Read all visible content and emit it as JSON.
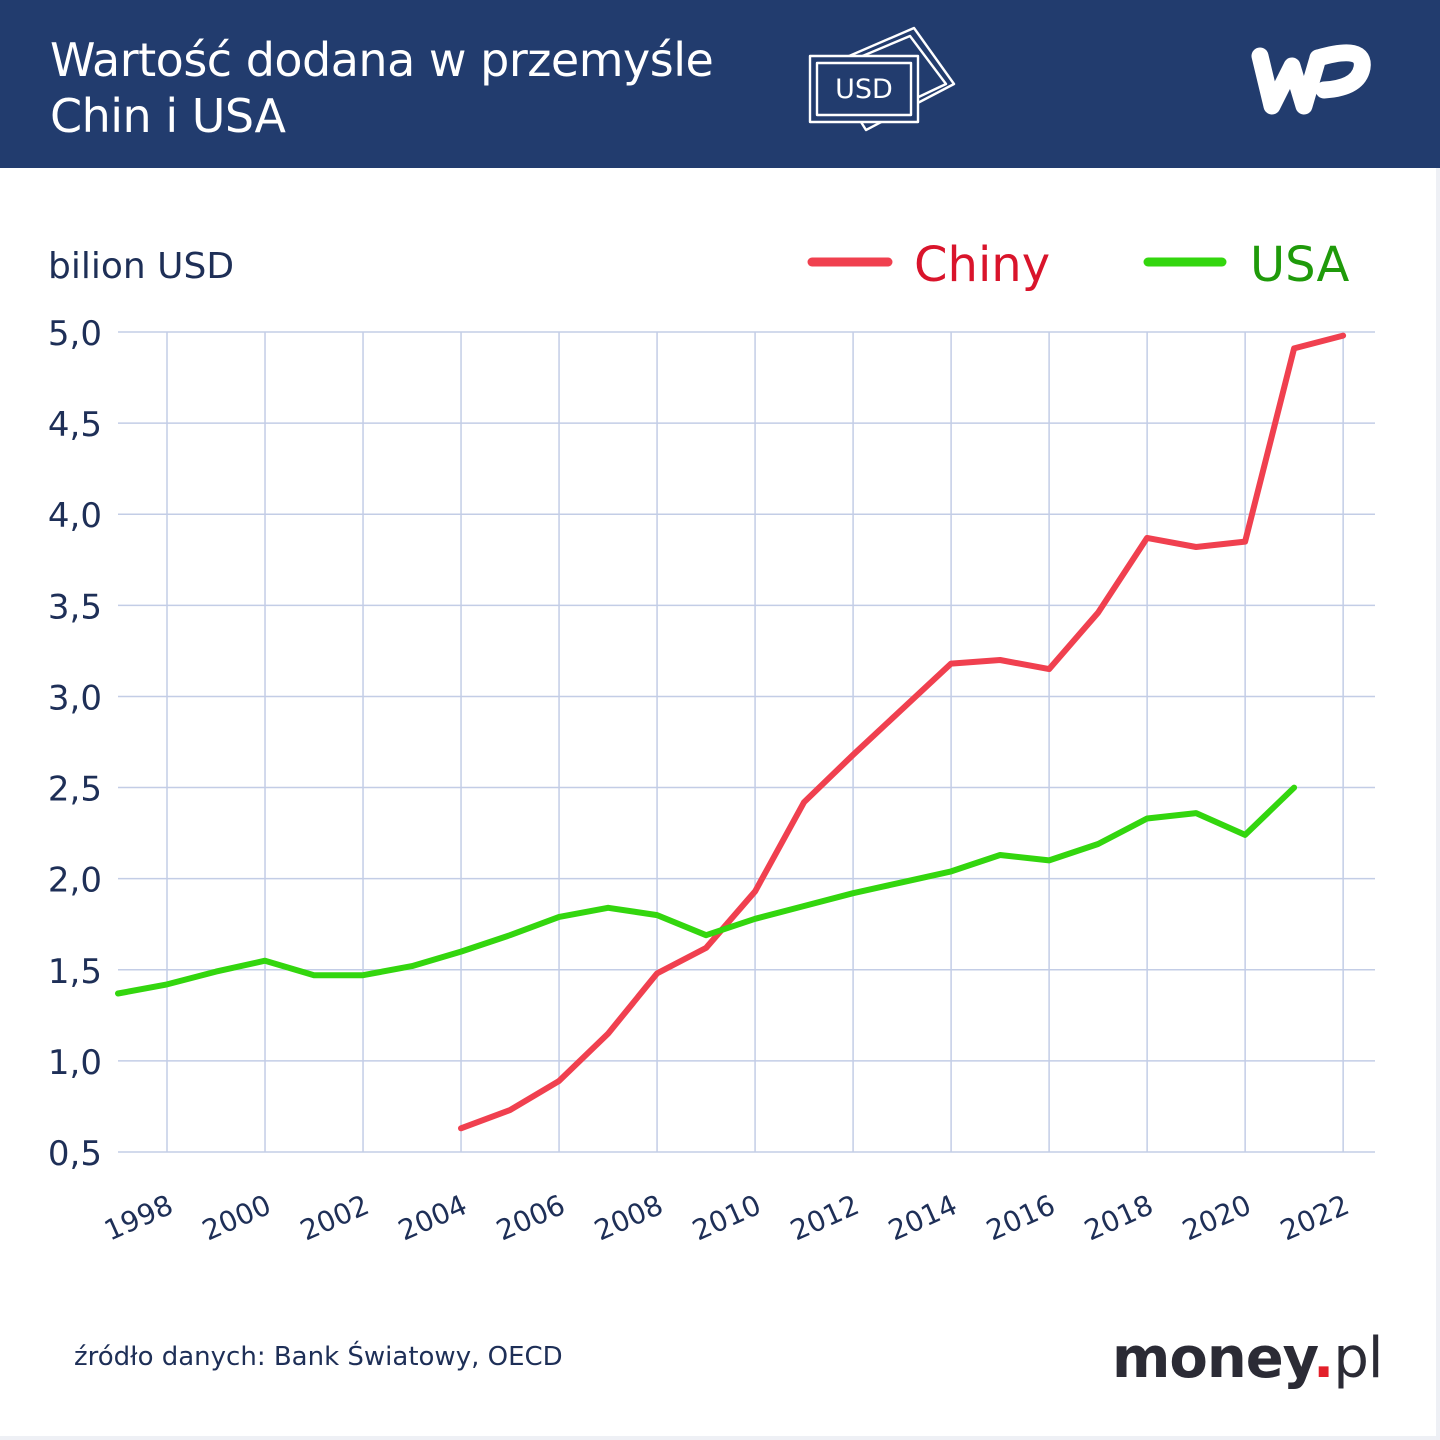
{
  "header": {
    "title_line1": "Wartość dodana w przemyśle",
    "title_line2": "Chin i USA",
    "icon_label": "USD",
    "logo": "WP"
  },
  "footer": {
    "source": "źródło danych: Bank Światowy, OECD",
    "brand_main": "money",
    "brand_dot": ".",
    "brand_tld": "pl"
  },
  "colors": {
    "header_bg": "#223c6e",
    "grid": "#c3cde6",
    "text": "#1e2f57",
    "china": "#f0404f",
    "china_label": "#d9142b",
    "usa": "#33d60e",
    "usa_label": "#1f9a0a"
  },
  "chart_data": {
    "type": "line",
    "ylabel": "bilion USD",
    "ylim": [
      0.5,
      5.0
    ],
    "y_ticks": [
      "0,5",
      "1,0",
      "1,5",
      "2,0",
      "2,5",
      "3,0",
      "3,5",
      "4,0",
      "4,5",
      "5,0"
    ],
    "y_tick_values": [
      0.5,
      1.0,
      1.5,
      2.0,
      2.5,
      3.0,
      3.5,
      4.0,
      4.5,
      5.0
    ],
    "x_ticks": [
      1998,
      2000,
      2002,
      2004,
      2006,
      2008,
      2010,
      2012,
      2014,
      2016,
      2018,
      2020,
      2022
    ],
    "grid": true,
    "legend_position": "top-right",
    "series": [
      {
        "name": "Chiny",
        "x": [
          2004,
          2005,
          2006,
          2007,
          2008,
          2009,
          2010,
          2011,
          2012,
          2013,
          2014,
          2015,
          2016,
          2017,
          2018,
          2019,
          2020,
          2021,
          2022
        ],
        "values": [
          0.63,
          0.73,
          0.89,
          1.15,
          1.48,
          1.62,
          1.93,
          2.42,
          2.68,
          2.93,
          3.18,
          3.2,
          3.15,
          3.46,
          3.87,
          3.82,
          3.85,
          4.91,
          4.98
        ]
      },
      {
        "name": "USA",
        "x": [
          1997,
          1998,
          1999,
          2000,
          2001,
          2002,
          2003,
          2004,
          2005,
          2006,
          2007,
          2008,
          2009,
          2010,
          2011,
          2012,
          2013,
          2014,
          2015,
          2016,
          2017,
          2018,
          2019,
          2020,
          2021
        ],
        "values": [
          1.37,
          1.42,
          1.49,
          1.55,
          1.47,
          1.47,
          1.52,
          1.6,
          1.69,
          1.79,
          1.84,
          1.8,
          1.69,
          1.78,
          1.85,
          1.92,
          1.98,
          2.04,
          2.13,
          2.1,
          2.19,
          2.33,
          2.36,
          2.24,
          2.5
        ]
      }
    ]
  }
}
